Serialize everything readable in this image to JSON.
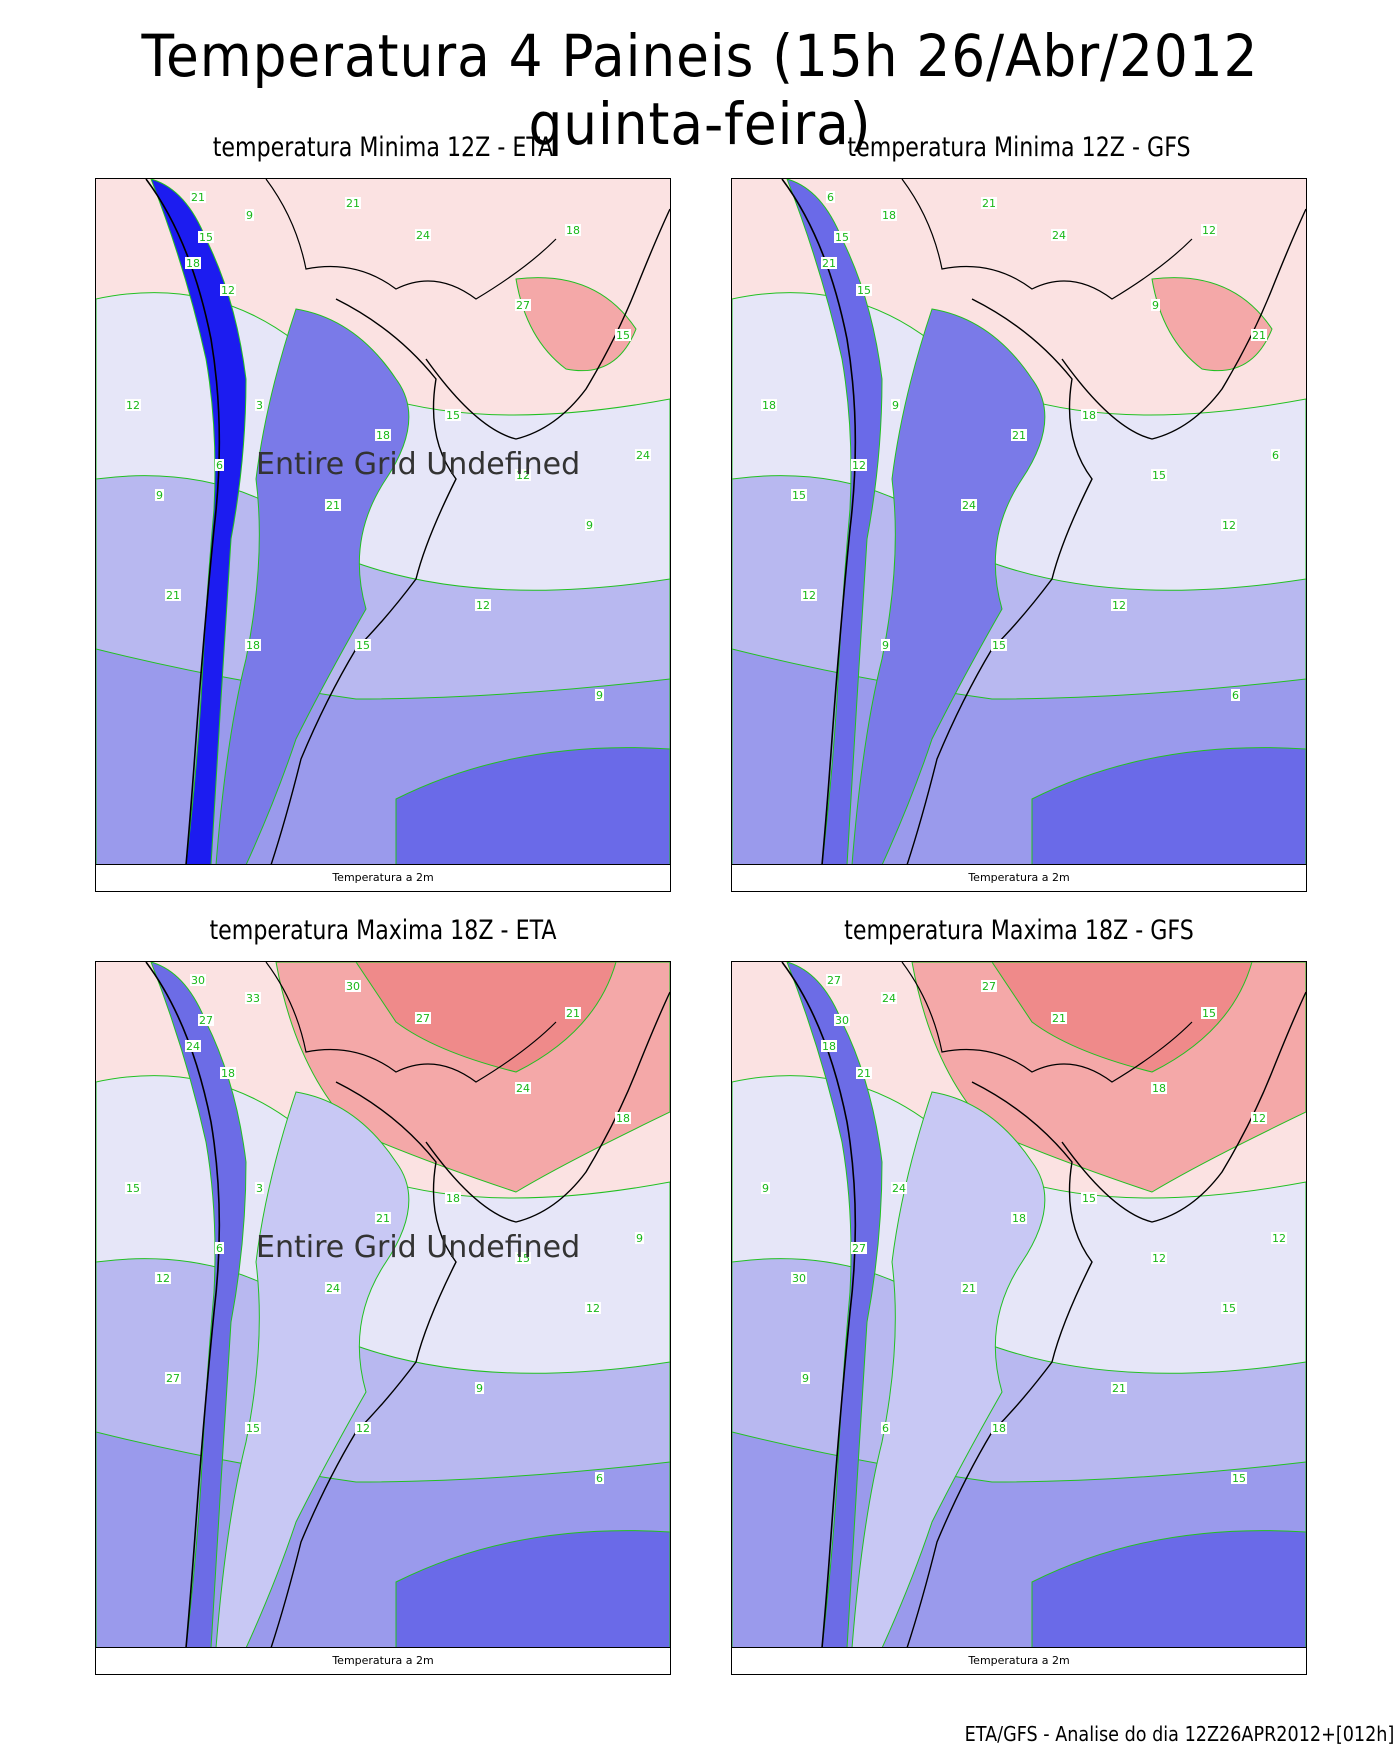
{
  "title": "Temperatura 4 Paineis (15h 26/Abr/2012 quinta-feira)",
  "footer": "ETA/GFS - Analise do dia 12Z26APR2012+[012h]",
  "map_caption": "Temperatura a 2m",
  "undefined_message": "Entire Grid Undefined",
  "colors": {
    "contour_line": "#22c022",
    "coast_line": "#000000",
    "cold_extreme": "#1c1cf0",
    "cold": "#6a6ae8",
    "cool": "#b8b8f0",
    "neutral": "#e6e6f8",
    "warm": "#fbe2e2",
    "hot": "#f4a8a8"
  },
  "panels": [
    {
      "title": "temperatura Minima 12Z - ETA",
      "shows_undefined_message": true,
      "contour_labels": [
        "21",
        "15",
        "18",
        "12",
        "9",
        "21",
        "24",
        "27",
        "18",
        "15",
        "12",
        "9",
        "6",
        "3",
        "21",
        "18",
        "15",
        "12",
        "9",
        "24",
        "21",
        "18",
        "15",
        "12",
        "9"
      ]
    },
    {
      "title": "temperatura Minima 12Z - GFS",
      "shows_undefined_message": false,
      "contour_labels": [
        "6",
        "15",
        "21",
        "15",
        "18",
        "21",
        "24",
        "9",
        "12",
        "21",
        "18",
        "15",
        "12",
        "9",
        "24",
        "21",
        "18",
        "15",
        "12",
        "6",
        "12",
        "9",
        "15",
        "12",
        "6"
      ]
    },
    {
      "title": "temperatura Maxima 18Z - ETA",
      "shows_undefined_message": true,
      "contour_labels": [
        "30",
        "27",
        "24",
        "18",
        "33",
        "30",
        "27",
        "24",
        "21",
        "18",
        "15",
        "12",
        "6",
        "3",
        "24",
        "21",
        "18",
        "15",
        "12",
        "9",
        "27",
        "15",
        "12",
        "9",
        "6"
      ]
    },
    {
      "title": "temperatura Maxima 18Z - GFS",
      "shows_undefined_message": false,
      "contour_labels": [
        "27",
        "30",
        "18",
        "21",
        "24",
        "27",
        "21",
        "18",
        "15",
        "12",
        "9",
        "30",
        "27",
        "24",
        "21",
        "18",
        "15",
        "12",
        "15",
        "12",
        "9",
        "6",
        "18",
        "21",
        "15"
      ]
    }
  ]
}
